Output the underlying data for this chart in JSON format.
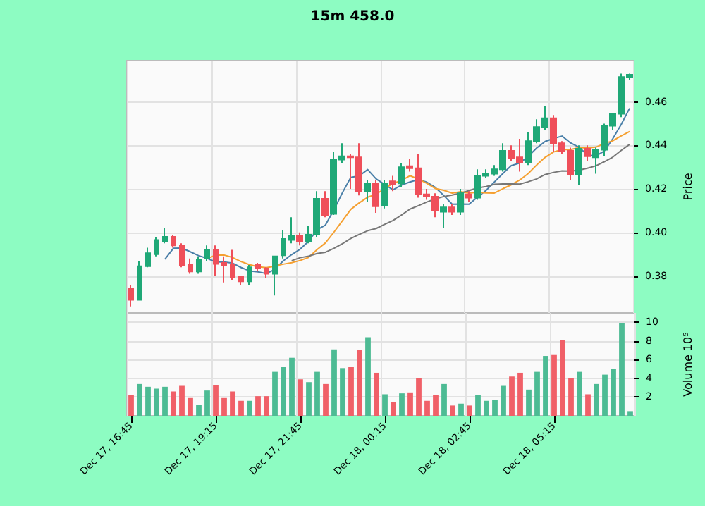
{
  "chart_data": [
    {
      "type": "candlestick",
      "title": "15m 458.0",
      "ylabel": "Price",
      "ylim": [
        0.363,
        0.479
      ],
      "yticks": [
        0.38,
        {
          "value": 0.4,
          "label": "0.40"
        },
        0.42,
        0.44,
        0.46
      ],
      "grid": true,
      "tick_labels": "y",
      "categories": [
        null,
        null,
        null,
        null,
        null,
        null,
        null,
        null,
        null,
        null,
        null,
        null,
        null,
        null,
        null,
        null,
        null,
        null,
        null,
        null,
        null,
        null,
        null,
        null,
        null,
        null,
        null,
        null,
        null,
        null,
        null,
        null,
        null,
        null,
        null,
        null,
        null,
        null,
        null,
        null,
        null,
        null,
        null,
        null,
        null,
        null,
        null,
        null,
        null,
        null,
        null,
        null,
        null,
        null,
        null,
        null,
        null,
        null,
        null,
        null
      ],
      "ohlc": [
        [
          0.374,
          0.376,
          0.366,
          0.369
        ],
        [
          0.369,
          0.387,
          0.369,
          0.3845
        ],
        [
          0.3845,
          0.393,
          0.384,
          0.3905
        ],
        [
          0.39,
          0.398,
          0.389,
          0.3965
        ],
        [
          0.396,
          0.402,
          0.395,
          0.398
        ],
        [
          0.398,
          0.399,
          0.393,
          0.394
        ],
        [
          0.394,
          0.395,
          0.384,
          0.385
        ],
        [
          0.385,
          0.388,
          0.381,
          0.382
        ],
        [
          0.382,
          0.389,
          0.381,
          0.3875
        ],
        [
          0.388,
          0.394,
          0.387,
          0.392
        ],
        [
          0.392,
          0.394,
          0.38,
          0.3855
        ],
        [
          0.386,
          0.389,
          0.377,
          0.385
        ],
        [
          0.385,
          0.392,
          0.378,
          0.3795
        ],
        [
          0.3795,
          0.38,
          0.376,
          0.3775
        ],
        [
          0.3775,
          0.385,
          0.376,
          0.384
        ],
        [
          0.385,
          0.386,
          0.382,
          0.3835
        ],
        [
          0.3835,
          0.384,
          0.379,
          0.381
        ],
        [
          0.381,
          0.389,
          0.371,
          0.389
        ],
        [
          0.3895,
          0.401,
          0.388,
          0.397
        ],
        [
          0.3965,
          0.407,
          0.395,
          0.3985
        ],
        [
          0.3985,
          0.4,
          0.394,
          0.396
        ],
        [
          0.396,
          0.403,
          0.395,
          0.399
        ],
        [
          0.399,
          0.419,
          0.398,
          0.4155
        ],
        [
          0.4155,
          0.419,
          0.407,
          0.408
        ],
        [
          0.4085,
          0.437,
          0.408,
          0.4335
        ],
        [
          0.4335,
          0.441,
          0.432,
          0.435
        ],
        [
          0.435,
          0.436,
          0.42,
          0.4345
        ],
        [
          0.4345,
          0.441,
          0.417,
          0.419
        ],
        [
          0.419,
          0.424,
          0.414,
          0.4225
        ],
        [
          0.4225,
          0.424,
          0.409,
          0.412
        ],
        [
          0.4125,
          0.424,
          0.411,
          0.4225
        ],
        [
          0.4235,
          0.426,
          0.419,
          0.422
        ],
        [
          0.4225,
          0.432,
          0.421,
          0.43
        ],
        [
          0.4305,
          0.434,
          0.428,
          0.4295
        ],
        [
          0.4295,
          0.436,
          0.416,
          0.4175
        ],
        [
          0.4175,
          0.42,
          0.415,
          0.4165
        ],
        [
          0.4165,
          0.418,
          0.407,
          0.41
        ],
        [
          0.4095,
          0.413,
          0.402,
          0.4115
        ],
        [
          0.4115,
          0.413,
          0.408,
          0.4095
        ],
        [
          0.4095,
          0.42,
          0.408,
          0.418
        ],
        [
          0.4175,
          0.419,
          0.414,
          0.416
        ],
        [
          0.416,
          0.429,
          0.415,
          0.426
        ],
        [
          0.426,
          0.429,
          0.425,
          0.427
        ],
        [
          0.427,
          0.431,
          0.426,
          0.429
        ],
        [
          0.429,
          0.441,
          0.428,
          0.4375
        ],
        [
          0.4375,
          0.44,
          0.433,
          0.434
        ],
        [
          0.4345,
          0.443,
          0.428,
          0.432
        ],
        [
          0.432,
          0.446,
          0.431,
          0.442
        ],
        [
          0.442,
          0.452,
          0.441,
          0.4485
        ],
        [
          0.4485,
          0.458,
          0.447,
          0.4525
        ],
        [
          0.4525,
          0.454,
          0.437,
          0.441
        ],
        [
          0.441,
          0.442,
          0.436,
          0.4375
        ],
        [
          0.4375,
          0.439,
          0.424,
          0.4265
        ],
        [
          0.4265,
          0.44,
          0.422,
          0.4385
        ],
        [
          0.4385,
          0.44,
          0.433,
          0.435
        ],
        [
          0.4345,
          0.439,
          0.427,
          0.438
        ],
        [
          0.438,
          0.45,
          0.435,
          0.449
        ],
        [
          0.449,
          0.455,
          0.447,
          0.4545
        ],
        [
          0.4545,
          0.473,
          0.453,
          0.4715
        ],
        [
          0.4715,
          0.473,
          0.47,
          0.4725
        ]
      ],
      "colors": [
        "#ef4f5a",
        "#1fa877",
        "#1fa877",
        "#1fa877",
        "#1fa877",
        "#ef4f5a",
        "#ef4f5a",
        "#ef4f5a",
        "#1fa877",
        "#1fa877",
        "#ef4f5a",
        "#ef4f5a",
        "#ef4f5a",
        "#ef4f5a",
        "#1fa877",
        "#ef4f5a",
        "#ef4f5a",
        "#1fa877",
        "#1fa877",
        "#1fa877",
        "#ef4f5a",
        "#1fa877",
        "#1fa877",
        "#ef4f5a",
        "#1fa877",
        "#1fa877",
        "#ef4f5a",
        "#ef4f5a",
        "#1fa877",
        "#ef4f5a",
        "#1fa877",
        "#ef4f5a",
        "#1fa877",
        "#ef4f5a",
        "#ef4f5a",
        "#ef4f5a",
        "#ef4f5a",
        "#1fa877",
        "#ef4f5a",
        "#1fa877",
        "#ef4f5a",
        "#1fa877",
        "#1fa877",
        "#1fa877",
        "#1fa877",
        "#ef4f5a",
        "#ef4f5a",
        "#1fa877",
        "#1fa877",
        "#1fa877",
        "#ef4f5a",
        "#ef4f5a",
        "#ef4f5a",
        "#1fa877",
        "#ef4f5a",
        "#1fa877",
        "#1fa877",
        "#1fa877",
        "#1fa877",
        "#1fa877"
      ],
      "series": [
        {
          "type": "line",
          "color": "#4a7fa8",
          "values": [
            null,
            null,
            null,
            null,
            0.3877,
            0.3927,
            0.3928,
            0.3911,
            0.3893,
            0.3881,
            0.3864,
            0.3864,
            0.3859,
            0.3839,
            0.3823,
            0.3819,
            0.3811,
            0.383,
            0.3869,
            0.3898,
            0.3923,
            0.3959,
            0.4012,
            0.4034,
            0.4104,
            0.4182,
            0.4253,
            0.426,
            0.4289,
            0.4246,
            0.4221,
            0.4196,
            0.4218,
            0.4232,
            0.4243,
            0.4231,
            0.4207,
            0.417,
            0.413,
            0.4131,
            0.413,
            0.4162,
            0.4193,
            0.4232,
            0.4271,
            0.4307,
            0.4319,
            0.4349,
            0.4388,
            0.4418,
            0.4432,
            0.4443,
            0.4412,
            0.4392,
            0.4357,
            0.4351,
            0.4374,
            0.443,
            0.4496,
            0.4571
          ]
        },
        {
          "type": "line",
          "color": "#f5a031",
          "values": [
            null,
            null,
            null,
            null,
            null,
            null,
            null,
            null,
            null,
            0.3879,
            0.3896,
            0.3896,
            0.3885,
            0.3866,
            0.3852,
            0.3842,
            0.3838,
            0.3845,
            0.3854,
            0.3861,
            0.3871,
            0.3885,
            0.3921,
            0.3952,
            0.4001,
            0.4053,
            0.4106,
            0.4136,
            0.4162,
            0.4175,
            0.4202,
            0.4225,
            0.4239,
            0.4261,
            0.4245,
            0.4226,
            0.4202,
            0.4194,
            0.4181,
            0.4187,
            0.4181,
            0.4185,
            0.4182,
            0.4181,
            0.4201,
            0.4219,
            0.4241,
            0.4271,
            0.431,
            0.4345,
            0.437,
            0.4381,
            0.4381,
            0.439,
            0.4388,
            0.4392,
            0.4409,
            0.4421,
            0.4444,
            0.4464
          ]
        },
        {
          "type": "line",
          "color": "#777777",
          "values": [
            null,
            null,
            null,
            null,
            null,
            null,
            null,
            null,
            null,
            null,
            null,
            null,
            null,
            null,
            null,
            null,
            null,
            null,
            null,
            0.387,
            0.3884,
            0.3891,
            0.3903,
            0.3909,
            0.3927,
            0.3948,
            0.3972,
            0.3991,
            0.4008,
            0.4018,
            0.4037,
            0.4055,
            0.408,
            0.4107,
            0.4123,
            0.414,
            0.4154,
            0.4165,
            0.4172,
            0.4181,
            0.4192,
            0.4205,
            0.4211,
            0.4221,
            0.4223,
            0.4223,
            0.4222,
            0.4233,
            0.4246,
            0.4266,
            0.4276,
            0.4283,
            0.4282,
            0.4286,
            0.4295,
            0.4306,
            0.4325,
            0.4346,
            0.4377,
            0.4405
          ]
        }
      ]
    },
    {
      "type": "bar",
      "ylabel": "Volume 10⁵",
      "ylim": [
        0,
        11
      ],
      "yticks": [
        2,
        4,
        6,
        8,
        10
      ],
      "grid": true,
      "categories": [
        "Dec 17, 16:45",
        null,
        null,
        null,
        null,
        null,
        null,
        null,
        null,
        null,
        "Dec 17, 19:15",
        null,
        null,
        null,
        null,
        null,
        null,
        null,
        null,
        null,
        "Dec 17, 21:45",
        null,
        null,
        null,
        null,
        null,
        null,
        null,
        null,
        null,
        "Dec 18, 00:15",
        null,
        null,
        null,
        null,
        null,
        null,
        null,
        null,
        null,
        "Dec 18, 02:45",
        null,
        null,
        null,
        null,
        null,
        null,
        null,
        null,
        null,
        "Dec 18, 05:15",
        null,
        null,
        null,
        null,
        null,
        null,
        null,
        null,
        null
      ],
      "values": [
        2.2,
        3.4,
        3.1,
        2.9,
        3.1,
        2.6,
        3.2,
        1.9,
        1.2,
        2.7,
        3.3,
        1.9,
        2.6,
        1.6,
        1.6,
        2.1,
        2.1,
        4.7,
        5.2,
        6.2,
        3.9,
        3.6,
        4.7,
        3.4,
        7.1,
        5.1,
        5.2,
        7.0,
        8.4,
        4.6,
        2.3,
        1.5,
        2.4,
        2.5,
        4.0,
        1.6,
        2.2,
        3.4,
        1.1,
        1.3,
        1.1,
        2.2,
        1.6,
        1.7,
        3.2,
        4.2,
        4.6,
        2.8,
        4.7,
        6.4,
        6.5,
        8.1,
        4.0,
        4.7,
        2.3,
        3.4,
        4.4,
        5.0,
        9.9,
        0.5
      ],
      "colors": [
        "#f06068",
        "#4dbb94",
        "#4dbb94",
        "#4dbb94",
        "#4dbb94",
        "#f06068",
        "#f06068",
        "#f06068",
        "#4dbb94",
        "#4dbb94",
        "#f06068",
        "#f06068",
        "#f06068",
        "#f06068",
        "#4dbb94",
        "#f06068",
        "#f06068",
        "#4dbb94",
        "#4dbb94",
        "#4dbb94",
        "#f06068",
        "#4dbb94",
        "#4dbb94",
        "#f06068",
        "#4dbb94",
        "#4dbb94",
        "#f06068",
        "#f06068",
        "#4dbb94",
        "#f06068",
        "#4dbb94",
        "#f06068",
        "#4dbb94",
        "#f06068",
        "#f06068",
        "#f06068",
        "#f06068",
        "#4dbb94",
        "#f06068",
        "#4dbb94",
        "#f06068",
        "#4dbb94",
        "#4dbb94",
        "#4dbb94",
        "#4dbb94",
        "#f06068",
        "#f06068",
        "#4dbb94",
        "#4dbb94",
        "#4dbb94",
        "#f06068",
        "#f06068",
        "#f06068",
        "#4dbb94",
        "#f06068",
        "#4dbb94",
        "#4dbb94",
        "#4dbb94",
        "#4dbb94",
        "#4dbb94"
      ]
    }
  ]
}
